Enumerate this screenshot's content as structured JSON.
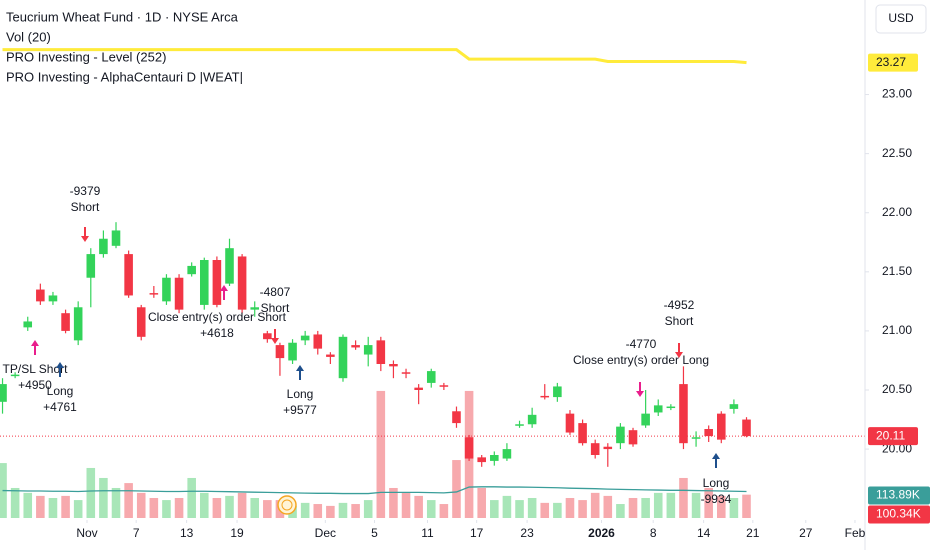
{
  "chart_data": {
    "type": "candlestick",
    "title": "Teucrium Wheat Fund · 1D · NYSE Arca",
    "currency": "USD",
    "indicators": [
      "Vol (20)",
      "PRO Investing - Level (252)",
      "PRO Investing - AlphaCentauri D |WEAT|"
    ],
    "open": [
      20.4,
      20.62,
      21.03,
      21.35,
      21.25,
      21.15,
      20.92,
      21.45,
      21.65,
      21.72,
      21.65,
      21.2,
      21.32,
      21.25,
      21.45,
      21.48,
      21.22,
      21.6,
      21.4,
      21.63,
      21.18,
      20.98,
      20.88,
      20.75,
      20.92,
      20.97,
      20.8,
      20.6,
      20.88,
      20.8,
      20.92,
      20.72,
      20.65,
      20.52,
      20.56,
      20.54,
      20.32,
      20.1,
      19.93,
      19.9,
      19.92,
      20.2,
      20.21,
      20.45,
      20.44,
      20.3,
      20.22,
      20.05,
      20.02,
      20.05,
      20.16,
      20.2,
      20.31,
      20.35,
      20.55,
      20.1,
      20.17,
      20.3,
      20.34,
      20.25
    ],
    "high": [
      20.6,
      20.65,
      21.12,
      21.4,
      21.33,
      21.18,
      21.25,
      21.7,
      21.85,
      21.92,
      21.68,
      21.22,
      21.38,
      21.48,
      21.48,
      21.58,
      21.62,
      21.63,
      21.78,
      21.65,
      21.25,
      21.0,
      20.9,
      20.93,
      21.0,
      21.0,
      20.82,
      20.97,
      20.92,
      20.95,
      20.95,
      20.75,
      20.68,
      20.55,
      20.68,
      20.56,
      20.36,
      20.12,
      19.95,
      19.98,
      20.05,
      20.24,
      20.35,
      20.55,
      20.56,
      20.33,
      20.25,
      20.08,
      20.05,
      20.22,
      20.18,
      20.5,
      20.42,
      20.38,
      20.7,
      20.15,
      20.2,
      20.32,
      20.42,
      20.27
    ],
    "low": [
      20.3,
      20.6,
      21.0,
      21.22,
      21.22,
      20.98,
      20.88,
      21.2,
      21.62,
      21.7,
      21.28,
      20.92,
      21.28,
      21.22,
      21.15,
      21.46,
      21.18,
      21.2,
      21.38,
      21.15,
      21.12,
      20.9,
      20.62,
      20.72,
      20.88,
      20.8,
      20.72,
      20.57,
      20.84,
      20.7,
      20.66,
      20.6,
      20.6,
      20.38,
      20.52,
      20.5,
      20.18,
      19.9,
      19.85,
      19.86,
      19.9,
      20.18,
      20.18,
      20.42,
      20.4,
      20.12,
      20.03,
      19.92,
      19.85,
      20.0,
      20.02,
      20.18,
      20.28,
      20.33,
      20.0,
      20.02,
      20.06,
      20.05,
      20.3,
      20.1
    ],
    "close": [
      20.55,
      20.63,
      21.08,
      21.25,
      21.3,
      21.0,
      21.2,
      21.65,
      21.78,
      21.85,
      21.3,
      20.95,
      21.31,
      21.45,
      21.18,
      21.55,
      21.6,
      21.22,
      21.7,
      21.18,
      21.2,
      20.93,
      20.77,
      20.9,
      20.96,
      20.85,
      20.78,
      20.95,
      20.86,
      20.88,
      20.72,
      20.7,
      20.64,
      20.5,
      20.66,
      20.53,
      20.22,
      19.92,
      19.89,
      19.95,
      20.0,
      20.21,
      20.29,
      20.44,
      20.53,
      20.14,
      20.05,
      19.95,
      20.0,
      20.19,
      20.04,
      20.3,
      20.37,
      20.36,
      20.05,
      20.1,
      20.11,
      20.08,
      20.38,
      20.11
    ],
    "volume": [
      236,
      129,
      108,
      95,
      86,
      95,
      77,
      215,
      172,
      129,
      150,
      108,
      86,
      77,
      86,
      172,
      108,
      86,
      95,
      108,
      86,
      77,
      77,
      52,
      65,
      60,
      52,
      65,
      60,
      77,
      546,
      129,
      108,
      95,
      77,
      60,
      249,
      546,
      129,
      77,
      95,
      77,
      86,
      65,
      65,
      86,
      77,
      108,
      95,
      60,
      86,
      86,
      108,
      108,
      172,
      108,
      129,
      95,
      86,
      100.34
    ],
    "volume_ma": [
      118,
      117,
      116,
      116,
      115,
      115,
      114,
      116,
      117,
      117,
      117,
      116,
      115,
      114,
      114,
      115,
      115,
      114,
      113,
      112,
      111,
      110,
      109,
      108,
      107,
      106,
      106,
      105,
      105,
      105,
      110,
      110,
      110,
      110,
      109,
      108,
      112,
      133,
      134,
      134,
      133,
      133,
      132,
      131,
      130,
      128,
      127,
      126,
      124,
      123,
      122,
      121,
      120,
      119,
      119,
      118,
      117,
      116,
      115,
      113.89
    ],
    "level": [
      23.38,
      23.38,
      23.38,
      23.38,
      23.38,
      23.38,
      23.38,
      23.38,
      23.38,
      23.38,
      23.38,
      23.38,
      23.38,
      23.38,
      23.38,
      23.38,
      23.38,
      23.38,
      23.38,
      23.38,
      23.38,
      23.38,
      23.38,
      23.38,
      23.38,
      23.38,
      23.38,
      23.38,
      23.38,
      23.38,
      23.38,
      23.38,
      23.38,
      23.38,
      23.38,
      23.38,
      23.38,
      23.3,
      23.3,
      23.3,
      23.3,
      23.3,
      23.3,
      23.3,
      23.3,
      23.3,
      23.3,
      23.3,
      23.28,
      23.28,
      23.28,
      23.28,
      23.28,
      23.28,
      23.28,
      23.28,
      23.28,
      23.28,
      23.28,
      23.27
    ],
    "colors": {
      "up": "#33d35a",
      "down": "#f23645",
      "volume_up": "#a8e6b8",
      "volume_down": "#f7a9ad",
      "volume_ma": "#3a9e9a",
      "level": "#ffeb3b"
    },
    "ylim": [
      19.4,
      23.8
    ],
    "yticks": [
      {
        "value": 23,
        "label": "23.00"
      },
      {
        "value": 22.5,
        "label": "22.50"
      },
      {
        "value": 22,
        "label": "22.00"
      },
      {
        "value": 21.5,
        "label": "21.50"
      },
      {
        "value": 21,
        "label": "21.00"
      },
      {
        "value": 20.5,
        "label": "20.50"
      },
      {
        "value": 20,
        "label": "20.00"
      }
    ],
    "volume_ylim": [
      0,
      550
    ],
    "xlim": [
      -0.2,
      68
    ],
    "xticks": [
      {
        "value": 6.7,
        "label": "Nov"
      },
      {
        "value": 10.6,
        "label": "7"
      },
      {
        "value": 14.6,
        "label": "13"
      },
      {
        "value": 18.6,
        "label": "19"
      },
      {
        "value": 25.6,
        "label": "Dec"
      },
      {
        "value": 29.5,
        "label": "5"
      },
      {
        "value": 33.7,
        "label": "11"
      },
      {
        "value": 37.6,
        "label": "17"
      },
      {
        "value": 41.6,
        "label": "23"
      },
      {
        "value": 47.5,
        "label": "2026"
      },
      {
        "value": 51.6,
        "label": "8"
      },
      {
        "value": 55.6,
        "label": "14"
      },
      {
        "value": 59.5,
        "label": "21"
      },
      {
        "value": 63.7,
        "label": "27"
      },
      {
        "value": 67.6,
        "label": "Feb"
      }
    ],
    "last_labels": {
      "level": {
        "value": 23.27,
        "label": "23.27"
      },
      "close": {
        "value": 20.11,
        "label": "20.11"
      },
      "volume_ma": {
        "value": 113.89,
        "label": "113.89K"
      },
      "volume": {
        "value": 100.34,
        "label": "100.34K"
      }
    },
    "annotations": [
      {
        "lines": [
          "-9379",
          "Short"
        ]
      },
      {
        "lines": [
          "TP/SL Short",
          "+4950"
        ]
      },
      {
        "lines": [
          "Long",
          "+4761"
        ]
      },
      {
        "lines": [
          "Close entry(s) order Short",
          "+4618"
        ]
      },
      {
        "lines": [
          "-4807",
          "Short"
        ]
      },
      {
        "lines": [
          "Long",
          "+9577"
        ]
      },
      {
        "lines": [
          "-4770",
          "Close entry(s) order Long"
        ]
      },
      {
        "lines": [
          "-4952",
          "Short"
        ]
      },
      {
        "lines": [
          "Long",
          "-9934"
        ]
      }
    ]
  }
}
